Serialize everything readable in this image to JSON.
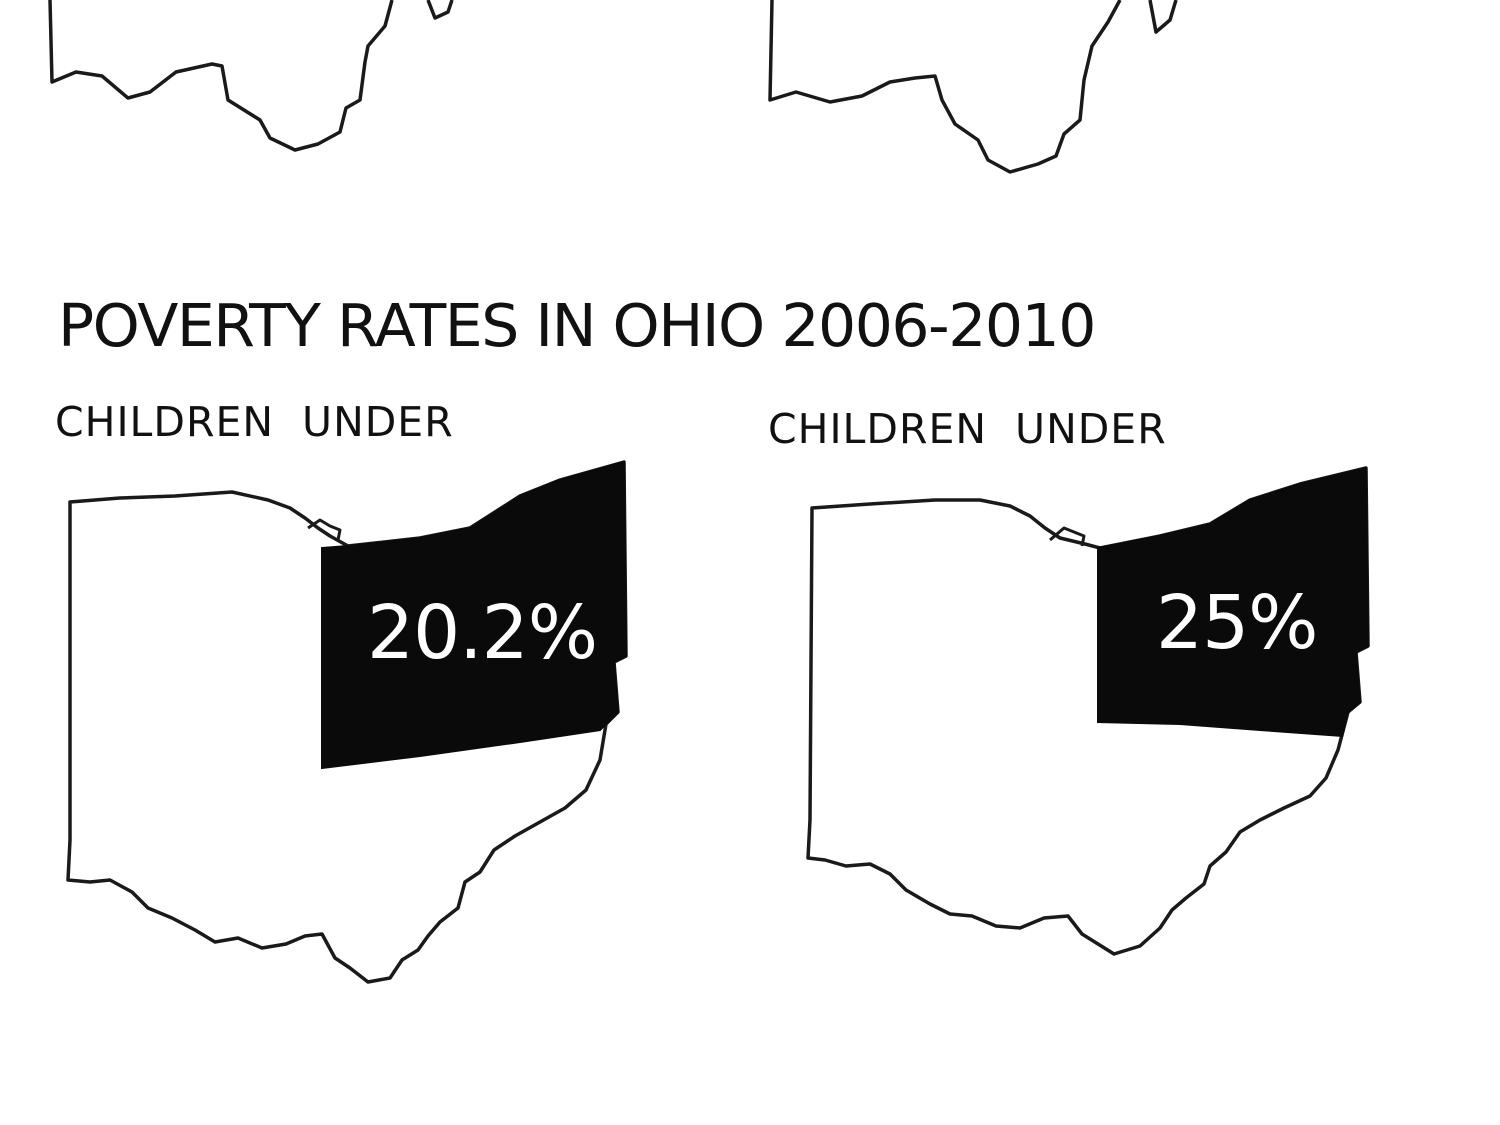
{
  "title": "POVERTY RATES IN OHIO 2006-2010",
  "maps": [
    {
      "subtitle": "CHILDREN  UNDER",
      "value_label": "20.2%"
    },
    {
      "subtitle": "CHILDREN  UNDER",
      "value_label": "25%"
    }
  ],
  "colors": {
    "region_fill": "#0a0a0a",
    "outline": "#1a1a1a",
    "background": "#ffffff"
  }
}
